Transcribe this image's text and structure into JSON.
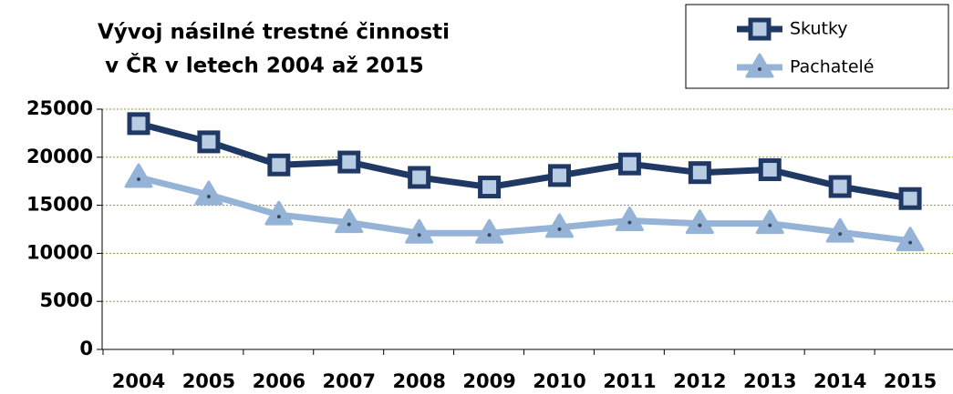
{
  "chart_data": {
    "type": "line",
    "title": [
      "Vývoj násilné trestné činnosti",
      "v ČR v letech 2004 až 2015"
    ],
    "categories": [
      "2004",
      "2005",
      "2006",
      "2007",
      "2008",
      "2009",
      "2010",
      "2011",
      "2012",
      "2013",
      "2014",
      "2015"
    ],
    "series": [
      {
        "name": "Skutky",
        "color": "#1f3864",
        "marker": "square",
        "values": [
          23500,
          21600,
          19200,
          19500,
          17900,
          16900,
          18100,
          19300,
          18400,
          18700,
          16950,
          15700
        ]
      },
      {
        "name": "Pachatelé",
        "color": "#95b3d7",
        "marker": "triangle",
        "values": [
          17900,
          16100,
          14000,
          13200,
          12100,
          12100,
          12700,
          13400,
          13100,
          13100,
          12200,
          11300
        ]
      }
    ],
    "ylim": [
      0,
      25000
    ],
    "yticks": [
      0,
      5000,
      10000,
      15000,
      20000,
      25000
    ],
    "grid": true,
    "legend": "top-right"
  }
}
